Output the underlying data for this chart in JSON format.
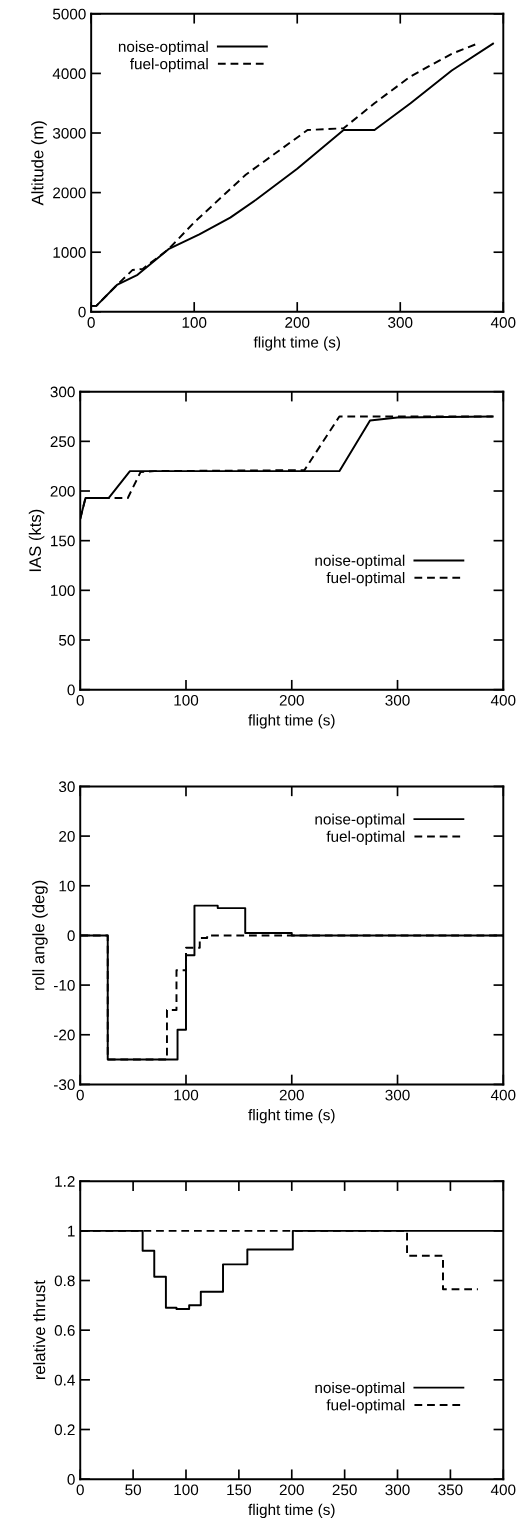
{
  "chart_data": [
    {
      "type": "line",
      "xlabel": "flight time (s)",
      "ylabel": "Altitude (m)",
      "xlim": [
        0,
        400
      ],
      "xticks": [
        0,
        100,
        200,
        300,
        400
      ],
      "ylim": [
        0,
        5000
      ],
      "yticks": [
        0,
        1000,
        2000,
        3000,
        4000,
        5000
      ],
      "legend": "top left",
      "grid": false,
      "series": [
        {
          "name": "noise-optimal",
          "color": "#000000",
          "line_style": "solid",
          "x": [
            0,
            5,
            25,
            45,
            75,
            105,
            135,
            160,
            200,
            245,
            275,
            310,
            350,
            390
          ],
          "values": [
            100,
            100,
            450,
            620,
            1050,
            1300,
            1580,
            1880,
            2400,
            3050,
            3050,
            3500,
            4050,
            4500
          ]
        },
        {
          "name": "fuel-optimal",
          "color": "#000000",
          "line_style": "dashed",
          "x": [
            0,
            5,
            25,
            40,
            50,
            75,
            100,
            150,
            210,
            245,
            275,
            310,
            350,
            375
          ],
          "values": [
            100,
            100,
            450,
            700,
            720,
            1050,
            1500,
            2300,
            3050,
            3080,
            3500,
            3950,
            4330,
            4500
          ]
        }
      ]
    },
    {
      "type": "line",
      "xlabel": "flight time (s)",
      "ylabel": "IAS (kts)",
      "xlim": [
        0,
        400
      ],
      "xticks": [
        0,
        100,
        200,
        300,
        400
      ],
      "ylim": [
        0,
        300
      ],
      "yticks": [
        0,
        50,
        100,
        150,
        200,
        250,
        300
      ],
      "legend": "right",
      "grid": false,
      "series": [
        {
          "name": "noise-optimal",
          "color": "#000000",
          "line_style": "solid",
          "x": [
            0,
            5,
            27,
            47,
            245,
            274,
            300,
            390
          ],
          "values": [
            172,
            193,
            193,
            220,
            220,
            271,
            274,
            275
          ]
        },
        {
          "name": "fuel-optimal",
          "color": "#000000",
          "line_style": "dashed",
          "x": [
            0,
            5,
            45,
            57,
            70,
            212,
            245,
            390
          ],
          "values": [
            172,
            193,
            193,
            219,
            220,
            221,
            275,
            275
          ]
        }
      ]
    },
    {
      "type": "step",
      "xlabel": "flight time (s)",
      "ylabel": "roll angle (deg)",
      "xlim": [
        0,
        400
      ],
      "xticks": [
        0,
        100,
        200,
        300,
        400
      ],
      "ylim": [
        -30,
        30
      ],
      "yticks": [
        -30,
        -20,
        -10,
        0,
        10,
        20,
        30
      ],
      "legend": "top right",
      "grid": false,
      "series": [
        {
          "name": "noise-optimal",
          "color": "#000000",
          "line_style": "solid",
          "x": [
            0,
            26,
            92,
            100,
            108,
            130,
            156,
            200,
            400
          ],
          "values": [
            0,
            -25,
            -19,
            -4,
            6,
            5.5,
            0.5,
            0,
            0
          ]
        },
        {
          "name": "fuel-optimal",
          "color": "#000000",
          "line_style": "dashed",
          "x": [
            0,
            26,
            82,
            91,
            100,
            113,
            120,
            400
          ],
          "values": [
            0,
            -25,
            -15,
            -7,
            -2.5,
            -0.5,
            0,
            0
          ]
        }
      ]
    },
    {
      "type": "step",
      "xlabel": "flight time (s)",
      "ylabel": "relative thrust",
      "xlim": [
        0,
        400
      ],
      "xticks": [
        0,
        50,
        100,
        150,
        200,
        250,
        300,
        350,
        400
      ],
      "ylim": [
        0,
        1.2
      ],
      "yticks": [
        0,
        0.2,
        0.4,
        0.6,
        0.8,
        1,
        1.2
      ],
      "legend": "bottom right",
      "grid": false,
      "series": [
        {
          "name": "noise-optimal",
          "color": "#000000",
          "line_style": "solid",
          "x": [
            0,
            59,
            70,
            81,
            91,
            103,
            114,
            135,
            158,
            201,
            400
          ],
          "values": [
            1,
            0.92,
            0.815,
            0.69,
            0.685,
            0.7,
            0.755,
            0.865,
            0.925,
            1,
            1
          ]
        },
        {
          "name": "fuel-optimal",
          "color": "#000000",
          "line_style": "dashed",
          "x": [
            0,
            309,
            343,
            376
          ],
          "values": [
            1,
            0.9,
            0.765,
            0.765
          ]
        }
      ]
    }
  ]
}
